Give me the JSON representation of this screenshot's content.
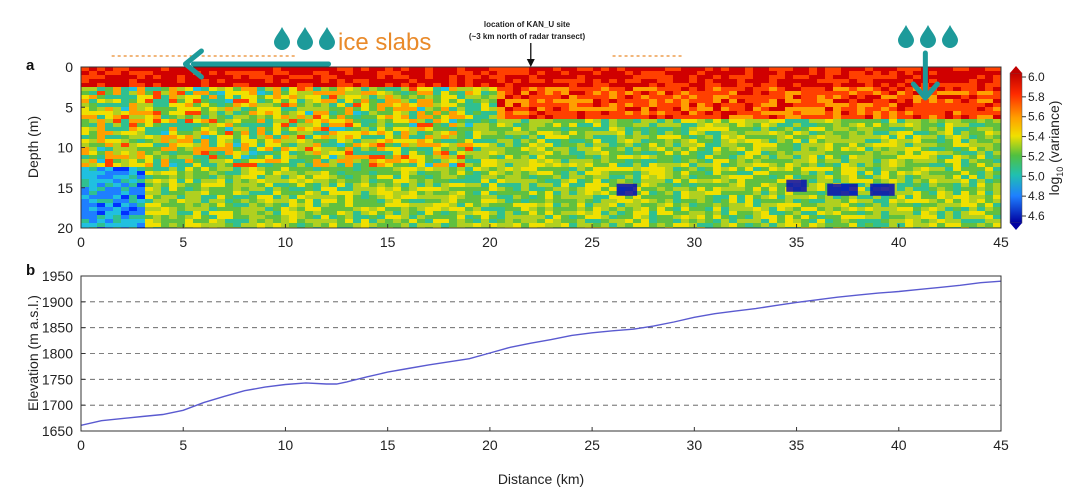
{
  "chart_data": [
    {
      "type": "heatmap",
      "panel_label": "a",
      "xlabel": "",
      "ylabel": "Depth (m)",
      "xlim": [
        0,
        45
      ],
      "ylim": [
        20,
        0
      ],
      "x_ticks": [
        0,
        5,
        10,
        15,
        20,
        25,
        30,
        35,
        40,
        45
      ],
      "y_ticks": [
        0,
        5,
        10,
        15,
        20
      ],
      "colorbar": {
        "label_main": "log",
        "label_sub": "10",
        "label_rest": " (variance)",
        "range": [
          4.6,
          6.0
        ],
        "ticks": [
          "6.0",
          "5.8",
          "5.6",
          "5.4",
          "5.2",
          "5.0",
          "4.8",
          "4.6"
        ],
        "colormap": "jet"
      },
      "annotations": {
        "kan_u_line1": "location of KAN_U site",
        "kan_u_line2": "(~3 km north of radar transect)",
        "kan_u_x": 22,
        "ice_slabs_label": "ice slabs",
        "ice_slab_extent_km": [
          1.5,
          29.5
        ],
        "left_arrow_x_km": [
          12.5,
          5.5
        ],
        "right_arrow_x_km": 41.3
      }
    },
    {
      "type": "line",
      "panel_label": "b",
      "xlabel": "Distance (km)",
      "ylabel": "Elevation (m a.s.l.)",
      "xlim": [
        0,
        45
      ],
      "ylim": [
        1650,
        1950
      ],
      "x_ticks": [
        0,
        5,
        10,
        15,
        20,
        25,
        30,
        35,
        40,
        45
      ],
      "y_ticks": [
        1650,
        1700,
        1750,
        1800,
        1850,
        1900,
        1950
      ],
      "grid": "horizontal-dashed",
      "series": [
        {
          "color": "#5a5ad0",
          "x": [
            0,
            1,
            2,
            3,
            4,
            5,
            6,
            7,
            8,
            9,
            10,
            11,
            12,
            12.5,
            13,
            14,
            15,
            16,
            17,
            18,
            19,
            20,
            21,
            22,
            23,
            24,
            25,
            26,
            27,
            28,
            29,
            30,
            31,
            32,
            33,
            34,
            35,
            36,
            37,
            38,
            39,
            40,
            41,
            42,
            43,
            44,
            45
          ],
          "y": [
            1661,
            1670,
            1674,
            1678,
            1682,
            1690,
            1705,
            1717,
            1728,
            1735,
            1740,
            1743,
            1741,
            1741,
            1745,
            1755,
            1764,
            1771,
            1778,
            1784,
            1790,
            1801,
            1812,
            1820,
            1827,
            1835,
            1840,
            1844,
            1847,
            1853,
            1861,
            1870,
            1877,
            1882,
            1887,
            1893,
            1899,
            1904,
            1909,
            1913,
            1917,
            1920,
            1924,
            1928,
            1932,
            1937,
            1940
          ]
        }
      ]
    }
  ]
}
